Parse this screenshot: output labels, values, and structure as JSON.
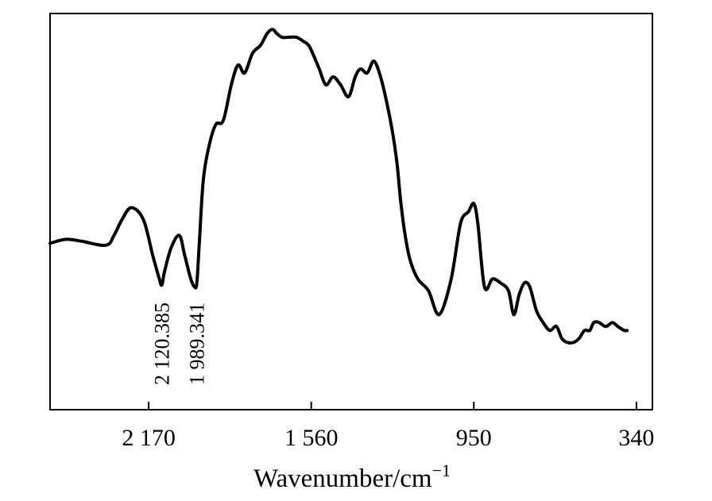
{
  "chart_data": {
    "type": "line",
    "title": "",
    "xlabel": "Wavenumber/cm",
    "xlabel_superscript": "−1",
    "ylabel": "",
    "x_reversed": true,
    "xlim": [
      2540,
      280
    ],
    "ylim": [
      0,
      100
    ],
    "y_ticks_shown": false,
    "grid": false,
    "x_ticks": [
      {
        "value": 2170,
        "label": "2 170"
      },
      {
        "value": 1560,
        "label": "1 560"
      },
      {
        "value": 950,
        "label": "950"
      },
      {
        "value": 340,
        "label": "340"
      }
    ],
    "peak_annotations": [
      {
        "x": 2120.385,
        "label": "2 120.385"
      },
      {
        "x": 1989.341,
        "label": "1 989.341"
      }
    ],
    "series": [
      {
        "x": [
          2540,
          2480,
          2420,
          2330,
          2300,
          2270,
          2235,
          2190,
          2155,
          2130,
          2120.385,
          2110,
          2085,
          2055,
          2035,
          2012,
          1998,
          1989.341,
          1980,
          1965,
          1942,
          1918,
          1890,
          1860,
          1835,
          1810,
          1780,
          1750,
          1725,
          1705,
          1690,
          1670,
          1645,
          1615,
          1590,
          1570,
          1555,
          1530,
          1505,
          1478,
          1450,
          1420,
          1395,
          1375,
          1350,
          1325,
          1300,
          1275,
          1255,
          1238,
          1225,
          1210,
          1190,
          1160,
          1120,
          1080,
          1035,
          1000,
          970,
          950,
          935,
          910,
          880,
          850,
          820,
          800,
          780,
          760,
          740,
          715,
          690,
          665,
          640,
          620,
          600,
          575,
          555,
          535,
          515,
          500,
          480,
          455,
          430,
          410,
          385,
          375
        ],
        "y": [
          42,
          43,
          42.5,
          41.5,
          44,
          48,
          51,
          48,
          39,
          33,
          31.5,
          35,
          41,
          44,
          39,
          33,
          31,
          32,
          42,
          58,
          67,
          72,
          73,
          82,
          87,
          85,
          90,
          92,
          95,
          96,
          95,
          94,
          94,
          94,
          93,
          92,
          90,
          86,
          82,
          84,
          82,
          79,
          84,
          86,
          85,
          88,
          84,
          77,
          70,
          62,
          53,
          45,
          38,
          33,
          30,
          24,
          33,
          47,
          50,
          52,
          47,
          31,
          33,
          32,
          30,
          24,
          29,
          32,
          31,
          25,
          22,
          20,
          21,
          18,
          17,
          17,
          18,
          20,
          20,
          22,
          22,
          21,
          22,
          21,
          20,
          20
        ]
      }
    ]
  }
}
